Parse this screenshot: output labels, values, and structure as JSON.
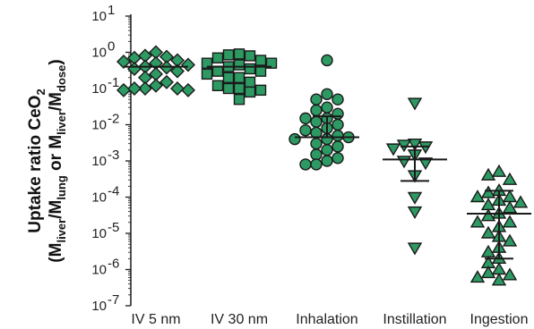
{
  "chart_data": {
    "type": "scatter",
    "scale": "log",
    "ylim": [
      1e-07,
      10
    ],
    "yticks": [
      {
        "value": 10,
        "label": "10",
        "exp": "1"
      },
      {
        "value": 1,
        "label": "10",
        "exp": "0"
      },
      {
        "value": 0.1,
        "label": "10",
        "exp": "-1"
      },
      {
        "value": 0.01,
        "label": "10",
        "exp": "-2"
      },
      {
        "value": 0.001,
        "label": "10",
        "exp": "-3"
      },
      {
        "value": 0.0001,
        "label": "10",
        "exp": "-4"
      },
      {
        "value": 1e-05,
        "label": "10",
        "exp": "-5"
      },
      {
        "value": 1e-06,
        "label": "10",
        "exp": "-6"
      },
      {
        "value": 1e-07,
        "label": "10",
        "exp": "-7"
      }
    ],
    "ylabel": {
      "line1": "Uptake ratio CeO",
      "line1_sub": "2",
      "line2_parts": [
        {
          "t": "(M",
          "sub": false
        },
        {
          "t": "liver",
          "sub": true
        },
        {
          "t": "/M",
          "sub": false
        },
        {
          "t": "lung",
          "sub": true
        },
        {
          "t": " or M",
          "sub": false
        },
        {
          "t": "liver",
          "sub": true
        },
        {
          "t": "/M",
          "sub": false
        },
        {
          "t": "dose",
          "sub": true
        },
        {
          "t": ")",
          "sub": false
        }
      ]
    },
    "categories": [
      "IV 5 nm",
      "IV 30 nm",
      "Inhalation",
      "Instillation",
      "Ingestion"
    ],
    "colors": {
      "fill": "#2e9a63",
      "stroke": "#1a1a1a",
      "bars": "#1a1a1a"
    },
    "series": [
      {
        "category": "IV 5 nm",
        "marker": "diamond",
        "median": 0.4,
        "values": [
          1.0,
          0.8,
          0.75,
          0.7,
          0.6,
          0.55,
          0.5,
          0.45,
          0.4,
          0.38,
          0.35,
          0.3,
          0.25,
          0.2,
          0.15,
          0.12,
          0.1,
          0.1,
          0.09,
          0.09,
          0.1
        ]
      },
      {
        "category": "IV 30 nm",
        "marker": "square",
        "median": 0.4,
        "values": [
          0.9,
          0.85,
          0.8,
          0.7,
          0.6,
          0.5,
          0.45,
          0.4,
          0.35,
          0.3,
          0.25,
          0.2,
          0.15,
          0.12,
          0.1,
          0.1,
          0.09,
          0.08,
          0.05,
          0.3,
          0.5,
          0.2
        ]
      },
      {
        "category": "Inhalation",
        "marker": "circle",
        "median": 0.0045,
        "upper": 0.017,
        "lower": 0.0045,
        "values": [
          0.6,
          0.07,
          0.05,
          0.05,
          0.03,
          0.025,
          0.02,
          0.015,
          0.015,
          0.012,
          0.01,
          0.008,
          0.007,
          0.006,
          0.005,
          0.0045,
          0.004,
          0.004,
          0.003,
          0.0025,
          0.002,
          0.0015,
          0.0012,
          0.001,
          0.0008,
          0.0008
        ]
      },
      {
        "category": "Instillation",
        "marker": "triangle-down",
        "median": 0.0011,
        "upper": 0.0025,
        "lower": 0.00028,
        "values": [
          0.04,
          0.003,
          0.0028,
          0.0025,
          0.0022,
          0.0015,
          0.001,
          0.0009,
          0.0004,
          0.0001,
          4e-05,
          4e-06
        ]
      },
      {
        "category": "Ingestion",
        "marker": "triangle-up",
        "median": 3.5e-05,
        "upper": 0.00015,
        "lower": 2e-06,
        "values": [
          0.0005,
          0.0004,
          0.0003,
          0.00015,
          0.00013,
          0.0001,
          8e-05,
          6e-05,
          5e-05,
          3.5e-05,
          3e-05,
          2e-05,
          1.5e-05,
          1e-05,
          8e-06,
          6e-06,
          4e-06,
          3e-06,
          2e-06,
          1.5e-06,
          1e-06,
          8e-07,
          6e-07,
          5e-07,
          7e-07,
          2e-05,
          0.0001,
          7e-05
        ]
      }
    ]
  }
}
